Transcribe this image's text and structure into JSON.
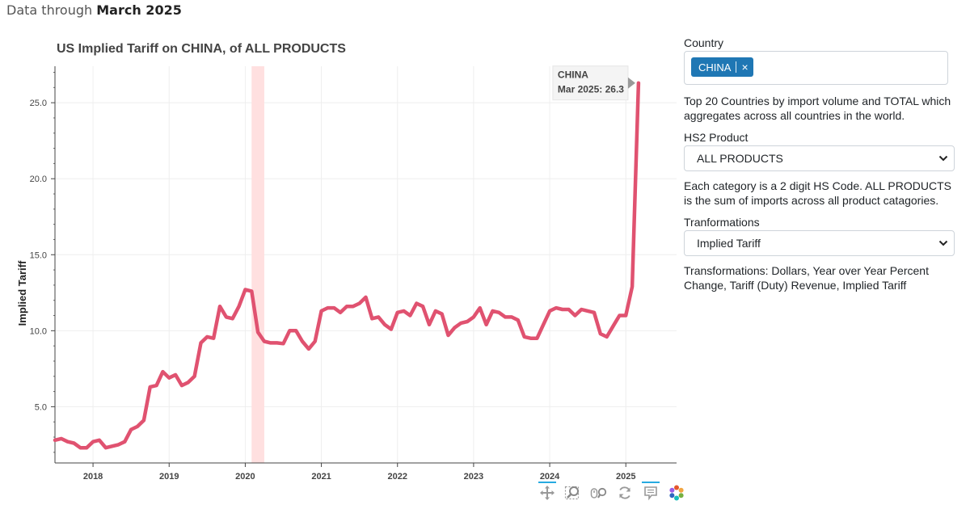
{
  "header": {
    "prefix": "Data through",
    "period": "March 2025"
  },
  "chart_data": {
    "type": "line",
    "title": "US Implied Tariff on CHINA, of ALL PRODUCTS",
    "ylabel": "Implied Tariff",
    "xlabel": "",
    "x_ticks": [
      "2018",
      "2019",
      "2020",
      "2021",
      "2022",
      "2023",
      "2024",
      "2025"
    ],
    "y_ticks": [
      "5.0",
      "10.0",
      "15.0",
      "20.0",
      "25.0"
    ],
    "xlim": [
      "2017-07",
      "2025-09"
    ],
    "ylim": [
      1.3,
      27.4
    ],
    "grid": true,
    "shaded_region": {
      "start": "2020-02",
      "end": "2020-04",
      "color": "#ffe0e0"
    },
    "series": [
      {
        "name": "CHINA",
        "color": "#e05270",
        "x": [
          "2017-07",
          "2017-08",
          "2017-09",
          "2017-10",
          "2017-11",
          "2017-12",
          "2018-01",
          "2018-02",
          "2018-03",
          "2018-04",
          "2018-05",
          "2018-06",
          "2018-07",
          "2018-08",
          "2018-09",
          "2018-10",
          "2018-11",
          "2018-12",
          "2019-01",
          "2019-02",
          "2019-03",
          "2019-04",
          "2019-05",
          "2019-06",
          "2019-07",
          "2019-08",
          "2019-09",
          "2019-10",
          "2019-11",
          "2019-12",
          "2020-01",
          "2020-02",
          "2020-03",
          "2020-04",
          "2020-05",
          "2020-06",
          "2020-07",
          "2020-08",
          "2020-09",
          "2020-10",
          "2020-11",
          "2020-12",
          "2021-01",
          "2021-02",
          "2021-03",
          "2021-04",
          "2021-05",
          "2021-06",
          "2021-07",
          "2021-08",
          "2021-09",
          "2021-10",
          "2021-11",
          "2021-12",
          "2022-01",
          "2022-02",
          "2022-03",
          "2022-04",
          "2022-05",
          "2022-06",
          "2022-07",
          "2022-08",
          "2022-09",
          "2022-10",
          "2022-11",
          "2022-12",
          "2023-01",
          "2023-02",
          "2023-03",
          "2023-04",
          "2023-05",
          "2023-06",
          "2023-07",
          "2023-08",
          "2023-09",
          "2023-10",
          "2023-11",
          "2023-12",
          "2024-01",
          "2024-02",
          "2024-03",
          "2024-04",
          "2024-05",
          "2024-06",
          "2024-07",
          "2024-08",
          "2024-09",
          "2024-10",
          "2024-11",
          "2024-12",
          "2025-01",
          "2025-02",
          "2025-03"
        ],
        "values": [
          2.8,
          2.9,
          2.7,
          2.6,
          2.3,
          2.3,
          2.7,
          2.8,
          2.3,
          2.4,
          2.5,
          2.7,
          3.5,
          3.7,
          4.1,
          6.3,
          6.4,
          7.3,
          6.9,
          7.1,
          6.4,
          6.6,
          7.0,
          9.2,
          9.6,
          9.5,
          11.6,
          10.9,
          10.8,
          11.6,
          12.7,
          12.6,
          9.9,
          9.3,
          9.2,
          9.2,
          9.15,
          10.0,
          10.0,
          9.3,
          8.8,
          9.3,
          11.3,
          11.5,
          11.5,
          11.2,
          11.6,
          11.6,
          11.8,
          12.2,
          10.8,
          10.9,
          10.4,
          10.1,
          11.2,
          11.3,
          11.0,
          11.8,
          11.6,
          10.4,
          11.3,
          11.1,
          9.7,
          10.2,
          10.5,
          10.6,
          10.9,
          11.5,
          10.4,
          11.3,
          11.2,
          10.9,
          10.9,
          10.7,
          9.6,
          9.5,
          9.5,
          10.4,
          11.3,
          11.5,
          11.4,
          11.4,
          11.0,
          11.4,
          11.3,
          11.2,
          9.8,
          9.6,
          10.3,
          11.0,
          11.0,
          12.9,
          26.3
        ]
      }
    ],
    "hover": {
      "label": "CHINA",
      "text": "Mar 2025: 26.3",
      "x": "2025-03",
      "y": 26.3
    }
  },
  "toolbar": {
    "icons": [
      "pan-icon",
      "box-zoom-icon",
      "wheel-zoom-icon",
      "reset-icon",
      "hover-icon",
      "bokeh-logo-icon"
    ]
  },
  "controls": {
    "country": {
      "label": "Country",
      "selected": "CHINA",
      "remove_symbol": "×"
    },
    "country_help": "Top 20 Countries by import volume and TOTAL which aggregates across all countries in the world.",
    "product": {
      "label": "HS2 Product",
      "value": "ALL PRODUCTS"
    },
    "product_help": "Each category is a 2 digit HS Code. ALL PRODUCTS is the sum of imports across all product catagories.",
    "transform": {
      "label": "Tranformations",
      "value": "Implied Tariff"
    },
    "transform_help": "Transformations: Dollars, Year over Year Percent Change, Tariff (Duty) Revenue, Implied Tariff"
  }
}
